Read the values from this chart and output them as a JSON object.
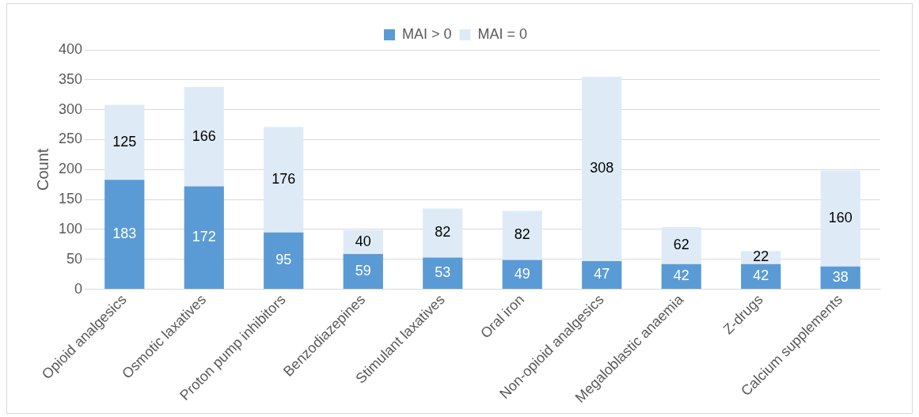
{
  "chart_data": {
    "type": "bar",
    "stacked": true,
    "ylabel": "Count",
    "categories": [
      "Opioid analgesics",
      "Osmotic laxatives",
      "Proton pump inhibitors",
      "Benzodiazepines",
      "Stimulant laxatives",
      "Oral iron",
      "Non-opioid analgesics",
      "Megaloblastic anaemia",
      "Z-drugs",
      "Calcium supplements"
    ],
    "series": [
      {
        "name": "MAI > 0",
        "color": "#5b9bd5",
        "values": [
          183,
          172,
          95,
          59,
          53,
          49,
          47,
          42,
          42,
          38
        ]
      },
      {
        "name": "MAI = 0",
        "color": "#deebf7",
        "values": [
          125,
          166,
          176,
          40,
          82,
          82,
          308,
          62,
          22,
          160
        ]
      }
    ],
    "ylim": [
      0,
      400
    ],
    "yticks": [
      0,
      50,
      100,
      150,
      200,
      250,
      300,
      350,
      400
    ],
    "grid": "y",
    "legend": "top",
    "data_labels": true
  }
}
